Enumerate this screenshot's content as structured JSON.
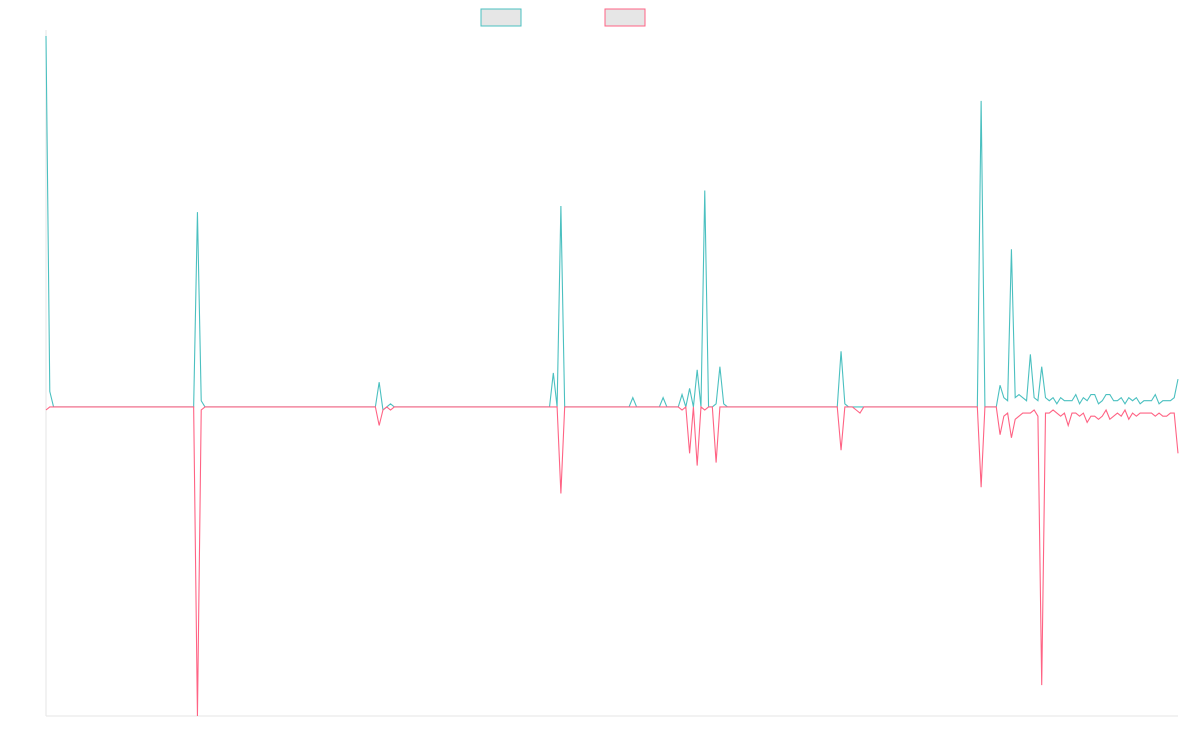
{
  "chart_data": {
    "type": "line",
    "title": "",
    "xlabel": "",
    "ylabel": "",
    "grid": false,
    "legend_position": "top-center",
    "legend": [
      {
        "label": "",
        "color": "#4bc0c0",
        "fill": "#e6e6e6"
      },
      {
        "label": "",
        "color": "#ff6384",
        "fill": "#e6e6e6"
      }
    ],
    "x": [
      0,
      1,
      2,
      3,
      4,
      5,
      6,
      7,
      8,
      9,
      10,
      11,
      12,
      13,
      14,
      15,
      16,
      17,
      18,
      19,
      20,
      21,
      22,
      23,
      24,
      25,
      26,
      27,
      28,
      29,
      30,
      31,
      32,
      33,
      34,
      35,
      36,
      37,
      38,
      39,
      40,
      41,
      42,
      43,
      44,
      45,
      46,
      47,
      48,
      49,
      50,
      51,
      52,
      53,
      54,
      55,
      56,
      57,
      58,
      59,
      60,
      61,
      62,
      63,
      64,
      65,
      66,
      67,
      68,
      69,
      70,
      71,
      72,
      73,
      74,
      75,
      76,
      77,
      78,
      79,
      80,
      81,
      82,
      83,
      84,
      85,
      86,
      87,
      88,
      89,
      90,
      91,
      92,
      93,
      94,
      95,
      96,
      97,
      98,
      99,
      100,
      101,
      102,
      103,
      104,
      105,
      106,
      107,
      108,
      109,
      110,
      111,
      112,
      113,
      114,
      115,
      116,
      117,
      118,
      119,
      120,
      121,
      122,
      123,
      124,
      125,
      126,
      127,
      128,
      129,
      130,
      131,
      132,
      133,
      134,
      135,
      136,
      137,
      138,
      139,
      140,
      141,
      142,
      143,
      144,
      145,
      146,
      147,
      148,
      149,
      150,
      151,
      152,
      153,
      154,
      155,
      156,
      157,
      158,
      159,
      160,
      161,
      162,
      163,
      164,
      165,
      166,
      167,
      168,
      169,
      170,
      171,
      172,
      173,
      174,
      175,
      176,
      177,
      178,
      179,
      180,
      181,
      182,
      183,
      184,
      185,
      186,
      187,
      188,
      189,
      190,
      191,
      192,
      193,
      194,
      195,
      196,
      197,
      198,
      199,
      200,
      201,
      202,
      203,
      204,
      205,
      206,
      207,
      208,
      209,
      210,
      211,
      212,
      213,
      214,
      215,
      216,
      217,
      218,
      219,
      220,
      221,
      222,
      223,
      224,
      225,
      226,
      227,
      228,
      229,
      230,
      231,
      232,
      233,
      234,
      235,
      236,
      237,
      238,
      239,
      240,
      241,
      242,
      243,
      244,
      245,
      246,
      247,
      248,
      249,
      250,
      251,
      252,
      253,
      254,
      255,
      256,
      257,
      258,
      259,
      260,
      261,
      262,
      263,
      264,
      265,
      266,
      267,
      268,
      269,
      270,
      271,
      272,
      273,
      274,
      275,
      276,
      277,
      278,
      279,
      280,
      281,
      282,
      283,
      284,
      285,
      286,
      287,
      288,
      289,
      290,
      291,
      292,
      293,
      294,
      295,
      296,
      297,
      298,
      299
    ],
    "ylim": [
      -1.0,
      1.2
    ],
    "xlim": [
      0,
      299
    ],
    "series": [
      {
        "color": "#4bc0c0",
        "values": [
          1.2,
          0.05,
          0,
          0,
          0,
          0,
          0,
          0,
          0,
          0,
          0,
          0,
          0,
          0,
          0,
          0,
          0,
          0,
          0,
          0,
          0,
          0,
          0,
          0,
          0,
          0,
          0,
          0,
          0,
          0,
          0,
          0,
          0,
          0,
          0,
          0,
          0,
          0,
          0,
          0,
          0.63,
          0.02,
          0,
          0,
          0,
          0,
          0,
          0,
          0,
          0,
          0,
          0,
          0,
          0,
          0,
          0,
          0,
          0,
          0,
          0,
          0,
          0,
          0,
          0,
          0,
          0,
          0,
          0,
          0,
          0,
          0,
          0,
          0,
          0,
          0,
          0,
          0,
          0,
          0,
          0,
          0,
          0,
          0,
          0,
          0,
          0,
          0,
          0,
          0.08,
          -0.01,
          0,
          0.01,
          0,
          0,
          0,
          0,
          0,
          0,
          0,
          0,
          0,
          0,
          0,
          0,
          0,
          0,
          0,
          0,
          0,
          0,
          0,
          0,
          0,
          0,
          0,
          0,
          0,
          0,
          0,
          0,
          0,
          0,
          0,
          0,
          0,
          0,
          0,
          0,
          0,
          0,
          0,
          0,
          0,
          0,
          0.11,
          0,
          0.65,
          0,
          0,
          0,
          0,
          0,
          0,
          0,
          0,
          0,
          0,
          0,
          0,
          0,
          0,
          0,
          0,
          0,
          0,
          0.03,
          0,
          0,
          0,
          0,
          0,
          0,
          0,
          0.03,
          0,
          0,
          0,
          0,
          0.04,
          0,
          0.06,
          0,
          0.12,
          0.0,
          0.7,
          0.0,
          0,
          0.01,
          0.13,
          0.01,
          0,
          0,
          0,
          0,
          0,
          0,
          0,
          0,
          0,
          0,
          0,
          0,
          0,
          0,
          0,
          0,
          0,
          0,
          0,
          0,
          0,
          0,
          0,
          0,
          0,
          0,
          0,
          0,
          0,
          0,
          0.18,
          0.01,
          0,
          0,
          0,
          0,
          0,
          0,
          0,
          0,
          0,
          0,
          0,
          0,
          0,
          0,
          0,
          0,
          0,
          0,
          0,
          0,
          0,
          0,
          0,
          0,
          0,
          0,
          0,
          0,
          0,
          0,
          0,
          0,
          0,
          0,
          0,
          0.99,
          0,
          0,
          0,
          0,
          0.07,
          0.03,
          0.02,
          0.51,
          0.03,
          0.04,
          0.03,
          0.02,
          0.17,
          0.03,
          0.02,
          0.13,
          0.03,
          0.02,
          0.03,
          0.01,
          0.03,
          0.02,
          0.02,
          0.02,
          0.04,
          0.01,
          0.03,
          0.02,
          0.04,
          0.04,
          0.01,
          0.02,
          0.04,
          0.04,
          0.02,
          0.02,
          0.03,
          0.01,
          0.03,
          0.02,
          0.03,
          0.01,
          0.02,
          0.02,
          0.02,
          0.04,
          0.01,
          0.02,
          0.02,
          0.02,
          0.03,
          0.09
        ]
      },
      {
        "color": "#ff6384",
        "values": [
          -0.01,
          0,
          0,
          0,
          0,
          0,
          0,
          0,
          0,
          0,
          0,
          0,
          0,
          0,
          0,
          0,
          0,
          0,
          0,
          0,
          0,
          0,
          0,
          0,
          0,
          0,
          0,
          0,
          0,
          0,
          0,
          0,
          0,
          0,
          0,
          0,
          0,
          0,
          0,
          0,
          -1.0,
          -0.01,
          0,
          0,
          0,
          0,
          0,
          0,
          0,
          0,
          0,
          0,
          0,
          0,
          0,
          0,
          0,
          0,
          0,
          0,
          0,
          0,
          0,
          0,
          0,
          0,
          0,
          0,
          0,
          0,
          0,
          0,
          0,
          0,
          0,
          0,
          0,
          0,
          0,
          0,
          0,
          0,
          0,
          0,
          0,
          0,
          0,
          0,
          -0.06,
          -0.01,
          0,
          -0.01,
          0,
          0,
          0,
          0,
          0,
          0,
          0,
          0,
          0,
          0,
          0,
          0,
          0,
          0,
          0,
          0,
          0,
          0,
          0,
          0,
          0,
          0,
          0,
          0,
          0,
          0,
          0,
          0,
          0,
          0,
          0,
          0,
          0,
          0,
          0,
          0,
          0,
          0,
          0,
          0,
          0,
          0,
          0,
          0,
          -0.28,
          0,
          0,
          0,
          0,
          0,
          0,
          0,
          0,
          0,
          0,
          0,
          0,
          0,
          0,
          0,
          0,
          0,
          0,
          0,
          0,
          0,
          0,
          0,
          0,
          0,
          0,
          0,
          0,
          0,
          0,
          0,
          -0.01,
          0,
          -0.15,
          0,
          -0.19,
          0,
          -0.01,
          0,
          0,
          -0.18,
          0,
          0,
          0,
          0,
          0,
          0,
          0,
          0,
          0,
          0,
          0,
          0,
          0,
          0,
          0,
          0,
          0,
          0,
          0,
          0,
          0,
          0,
          0,
          0,
          0,
          0,
          0,
          0,
          0,
          0,
          0,
          0,
          -0.14,
          0,
          0,
          0,
          -0.01,
          -0.02,
          0,
          0,
          0,
          0,
          0,
          0,
          0,
          0,
          0,
          0,
          0,
          0,
          0,
          0,
          0,
          0,
          0,
          0,
          0,
          0,
          0,
          0,
          0,
          0,
          0,
          0,
          0,
          0,
          0,
          0,
          0,
          -0.26,
          0,
          0,
          0,
          0,
          -0.09,
          -0.03,
          -0.02,
          -0.1,
          -0.04,
          -0.03,
          -0.02,
          -0.02,
          -0.02,
          -0.01,
          -0.03,
          -0.9,
          -0.02,
          -0.02,
          -0.01,
          -0.02,
          -0.03,
          -0.02,
          -0.06,
          -0.02,
          -0.02,
          -0.03,
          -0.02,
          -0.05,
          -0.03,
          -0.03,
          -0.04,
          -0.03,
          -0.01,
          -0.04,
          -0.03,
          -0.02,
          -0.03,
          -0.01,
          -0.04,
          -0.02,
          -0.03,
          -0.02,
          -0.02,
          -0.02,
          -0.02,
          -0.03,
          -0.02,
          -0.03,
          -0.03,
          -0.02,
          -0.02,
          -0.15
        ]
      }
    ]
  }
}
